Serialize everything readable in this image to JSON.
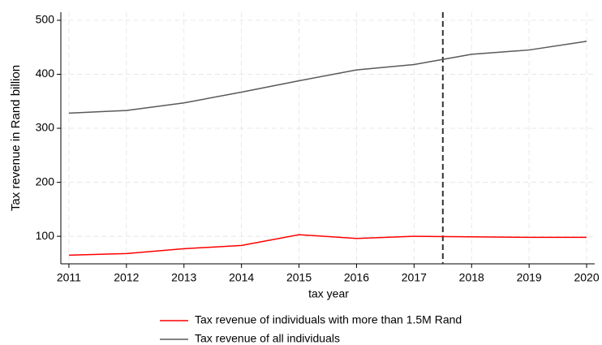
{
  "chart_data": {
    "type": "line",
    "x_label": "tax year",
    "y_label": "Tax revenue in Rand billion",
    "x": [
      2011,
      2012,
      2013,
      2014,
      2015,
      2016,
      2017,
      2018,
      2019,
      2020
    ],
    "series": [
      {
        "name": "Tax revenue of individuals with more than 1.5M Rand",
        "color": "#ff0000",
        "values": [
          65,
          68,
          77,
          83,
          103,
          96,
          100,
          99,
          98,
          98
        ]
      },
      {
        "name": "Tax revenue of all individuals",
        "color": "#595959",
        "values": [
          328,
          333,
          347,
          367,
          388,
          408,
          418,
          437,
          445,
          461
        ]
      }
    ],
    "xlim": [
      2010.86,
      2020.14
    ],
    "ylim": [
      49,
      515
    ],
    "xticks": [
      2011,
      2012,
      2013,
      2014,
      2015,
      2016,
      2017,
      2018,
      2019,
      2020
    ],
    "yticks": [
      100,
      200,
      300,
      400,
      500
    ],
    "vline": 2017.5,
    "grid": true,
    "legend": "bottom"
  }
}
